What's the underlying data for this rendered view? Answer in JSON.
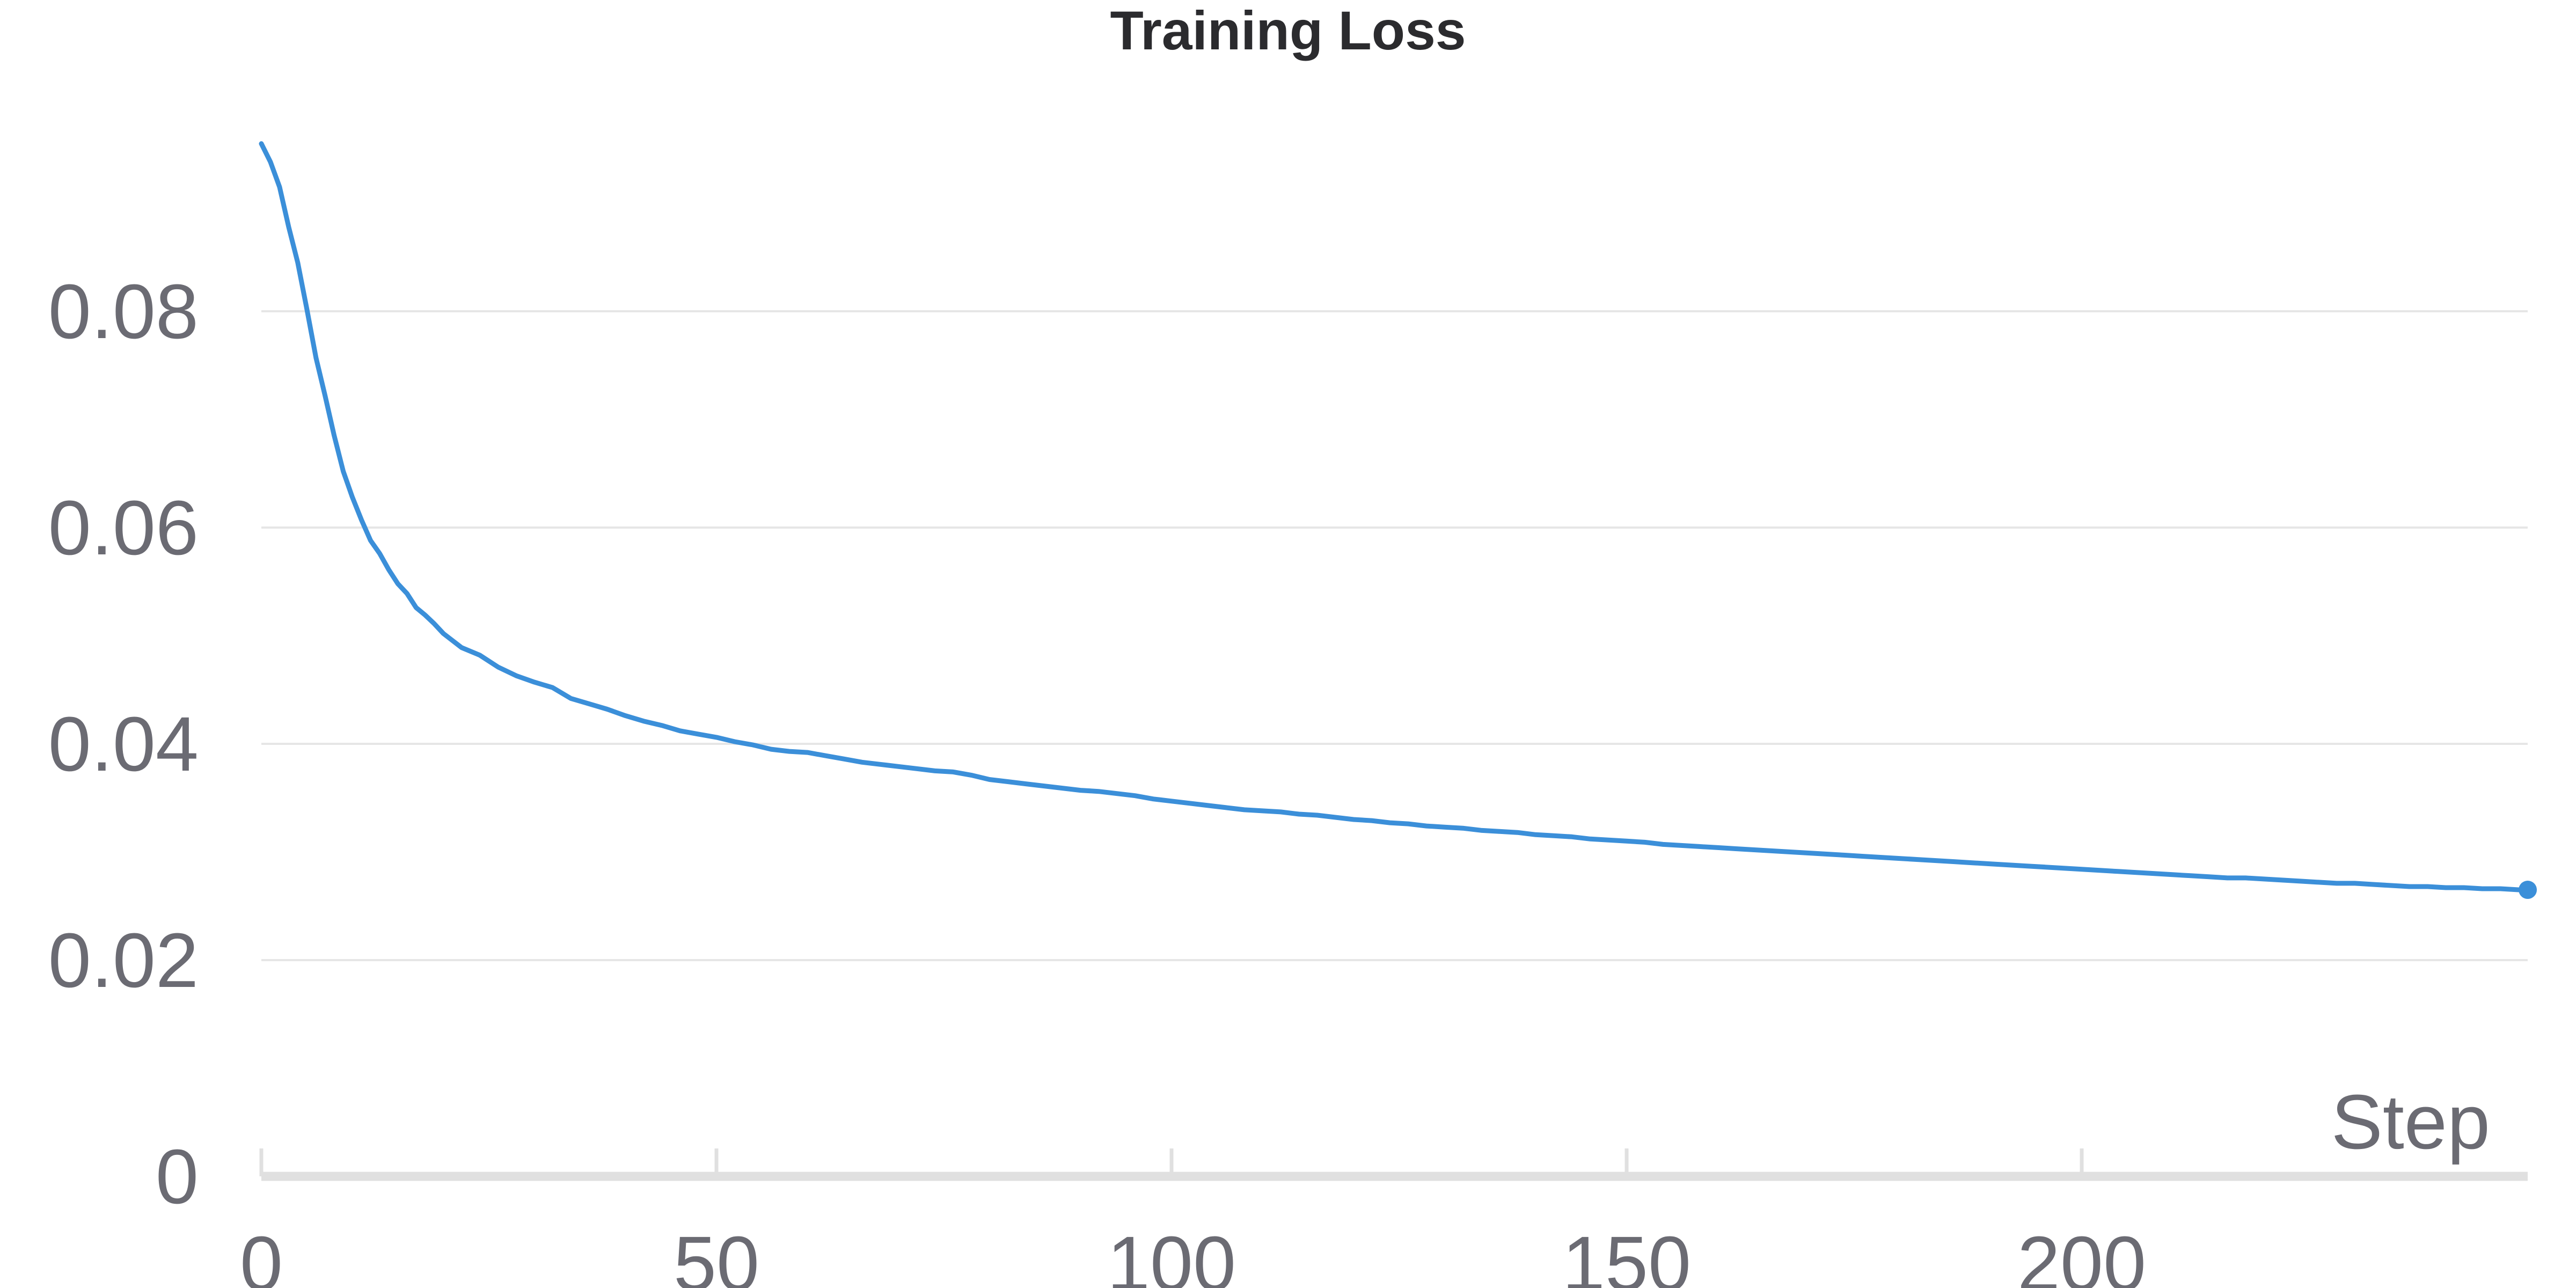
{
  "chart_data": {
    "type": "line",
    "title": "Training Loss",
    "xlabel": "Step",
    "ylabel": "",
    "xlim": [
      0,
      249
    ],
    "ylim": [
      0,
      0.1
    ],
    "x_ticks": [
      0,
      50,
      100,
      150,
      200
    ],
    "x_tick_labels": [
      "0",
      "50",
      "100",
      "150",
      "200"
    ],
    "y_ticks": [
      0,
      0.02,
      0.04,
      0.06,
      0.08
    ],
    "y_tick_labels": [
      "0",
      "0.02",
      "0.04",
      "0.06",
      "0.08"
    ],
    "grid": "horizontal",
    "series": [
      {
        "color": "#3b8fd9",
        "x": [
          0,
          1,
          2,
          3,
          4,
          5,
          6,
          7,
          8,
          9,
          10,
          11,
          12,
          13,
          14,
          15,
          16,
          17,
          18,
          19,
          20,
          22,
          24,
          26,
          28,
          30,
          32,
          34,
          36,
          38,
          40,
          42,
          44,
          46,
          48,
          50,
          52,
          54,
          56,
          58,
          60,
          62,
          64,
          66,
          68,
          70,
          72,
          74,
          76,
          78,
          80,
          82,
          84,
          86,
          88,
          90,
          92,
          94,
          96,
          98,
          100,
          102,
          104,
          106,
          108,
          110,
          112,
          114,
          116,
          118,
          120,
          122,
          124,
          126,
          128,
          130,
          132,
          134,
          136,
          138,
          140,
          142,
          144,
          146,
          148,
          150,
          152,
          154,
          156,
          158,
          160,
          162,
          164,
          166,
          168,
          170,
          172,
          174,
          176,
          178,
          180,
          182,
          184,
          186,
          188,
          190,
          192,
          194,
          196,
          198,
          200,
          202,
          204,
          206,
          208,
          210,
          212,
          214,
          216,
          218,
          220,
          222,
          224,
          226,
          228,
          230,
          232,
          234,
          236,
          238,
          240,
          242,
          244,
          246,
          248,
          249
        ],
        "values": [
          0.0955,
          0.0938,
          0.0915,
          0.0878,
          0.0845,
          0.0802,
          0.0757,
          0.0722,
          0.0685,
          0.0652,
          0.0628,
          0.0607,
          0.0588,
          0.0576,
          0.0561,
          0.0548,
          0.0539,
          0.0526,
          0.0519,
          0.0511,
          0.0502,
          0.0489,
          0.0482,
          0.0471,
          0.0463,
          0.0457,
          0.0452,
          0.0442,
          0.0437,
          0.0432,
          0.0426,
          0.0421,
          0.0417,
          0.0412,
          0.0409,
          0.0406,
          0.0402,
          0.0399,
          0.0395,
          0.0393,
          0.0392,
          0.0389,
          0.0386,
          0.0383,
          0.0381,
          0.0379,
          0.0377,
          0.0375,
          0.0374,
          0.0371,
          0.0367,
          0.0365,
          0.0363,
          0.0361,
          0.0359,
          0.0357,
          0.0356,
          0.0354,
          0.0352,
          0.0349,
          0.0347,
          0.0345,
          0.0343,
          0.0341,
          0.0339,
          0.0338,
          0.0337,
          0.0335,
          0.0334,
          0.0332,
          0.033,
          0.0329,
          0.0327,
          0.0326,
          0.0324,
          0.0323,
          0.0322,
          0.032,
          0.0319,
          0.0318,
          0.0316,
          0.0315,
          0.0314,
          0.0312,
          0.0311,
          0.031,
          0.0309,
          0.0307,
          0.0306,
          0.0305,
          0.0304,
          0.0303,
          0.0302,
          0.0301,
          0.03,
          0.0299,
          0.0298,
          0.0297,
          0.0296,
          0.0295,
          0.0294,
          0.0293,
          0.0292,
          0.0291,
          0.029,
          0.0289,
          0.0288,
          0.0287,
          0.0286,
          0.0285,
          0.0284,
          0.0283,
          0.0282,
          0.0281,
          0.028,
          0.0279,
          0.0278,
          0.0277,
          0.0276,
          0.0276,
          0.0275,
          0.0274,
          0.0273,
          0.0272,
          0.0271,
          0.0271,
          0.027,
          0.0269,
          0.0268,
          0.0268,
          0.0267,
          0.0267,
          0.0266,
          0.0266,
          0.0265,
          0.0265
        ]
      }
    ]
  }
}
